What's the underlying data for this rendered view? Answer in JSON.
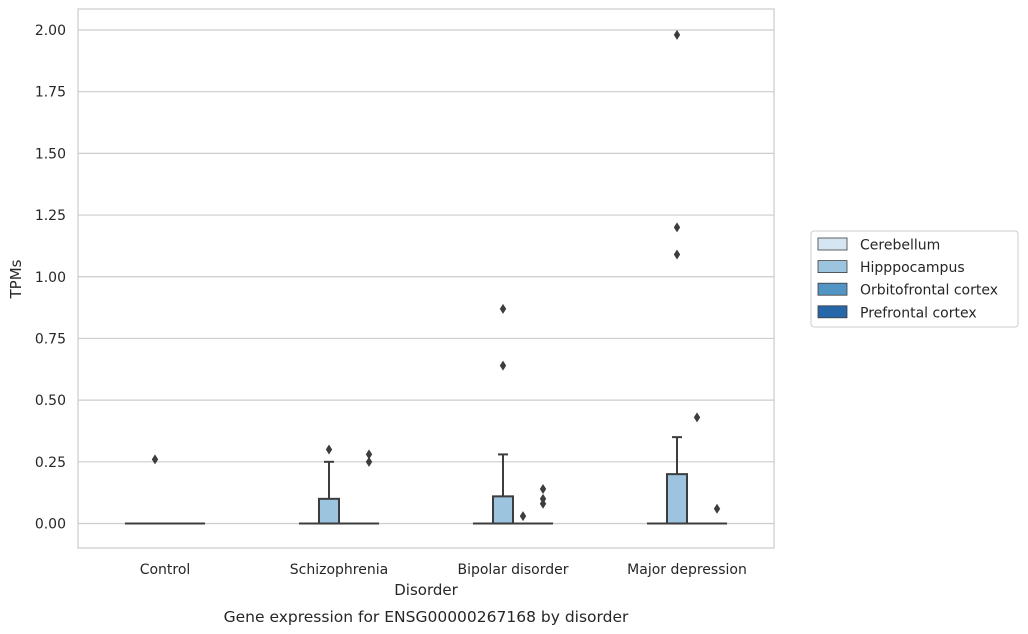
{
  "chart_data": {
    "type": "box",
    "title": "",
    "caption": "Gene expression for ENSG00000267168 by disorder",
    "xlabel": "Disorder",
    "ylabel": "TPMs",
    "ylim": [
      -0.1,
      2.08
    ],
    "yticks": [
      "0.00",
      "0.25",
      "0.50",
      "0.75",
      "1.00",
      "1.25",
      "1.50",
      "1.75",
      "2.00"
    ],
    "ytick_values": [
      0,
      0.25,
      0.5,
      0.75,
      1.0,
      1.25,
      1.5,
      1.75,
      2.0
    ],
    "categories": [
      "Control",
      "Schizophrenia",
      "Bipolar disorder",
      "Major depression"
    ],
    "grid": "horizontal",
    "legend_position": "right",
    "series": [
      {
        "name": "Cerebellum",
        "color": "#d5e5f2",
        "boxes": [
          {
            "q1": 0,
            "median": 0,
            "q3": 0,
            "whisker_low": 0,
            "whisker_high": 0,
            "outliers": []
          },
          {
            "q1": 0,
            "median": 0,
            "q3": 0,
            "whisker_low": 0,
            "whisker_high": 0,
            "outliers": []
          },
          {
            "q1": 0,
            "median": 0,
            "q3": 0,
            "whisker_low": 0,
            "whisker_high": 0,
            "outliers": []
          },
          {
            "q1": 0,
            "median": 0,
            "q3": 0,
            "whisker_low": 0,
            "whisker_high": 0,
            "outliers": []
          }
        ]
      },
      {
        "name": "Hipppocampus",
        "color": "#9cc4de",
        "boxes": [
          {
            "q1": 0,
            "median": 0,
            "q3": 0,
            "whisker_low": 0,
            "whisker_high": 0,
            "outliers": [
              0.26
            ]
          },
          {
            "q1": 0,
            "median": 0,
            "q3": 0.1,
            "whisker_low": 0,
            "whisker_high": 0.25,
            "outliers": [
              0.3
            ]
          },
          {
            "q1": 0,
            "median": 0,
            "q3": 0.11,
            "whisker_low": 0,
            "whisker_high": 0.28,
            "outliers": [
              0.64,
              0.87
            ]
          },
          {
            "q1": 0,
            "median": 0,
            "q3": 0.2,
            "whisker_low": 0,
            "whisker_high": 0.35,
            "outliers": [
              1.09,
              1.2,
              1.98
            ]
          }
        ]
      },
      {
        "name": "Orbitofrontal cortex",
        "color": "#5295c4",
        "boxes": [
          {
            "q1": 0,
            "median": 0,
            "q3": 0,
            "whisker_low": 0,
            "whisker_high": 0,
            "outliers": []
          },
          {
            "q1": 0,
            "median": 0,
            "q3": 0,
            "whisker_low": 0,
            "whisker_high": 0,
            "outliers": []
          },
          {
            "q1": 0,
            "median": 0,
            "q3": 0,
            "whisker_low": 0,
            "whisker_high": 0,
            "outliers": [
              0.03
            ]
          },
          {
            "q1": 0,
            "median": 0,
            "q3": 0,
            "whisker_low": 0,
            "whisker_high": 0,
            "outliers": [
              0.43
            ]
          }
        ]
      },
      {
        "name": "Prefrontal cortex",
        "color": "#2567a8",
        "boxes": [
          {
            "q1": 0,
            "median": 0,
            "q3": 0,
            "whisker_low": 0,
            "whisker_high": 0,
            "outliers": []
          },
          {
            "q1": 0,
            "median": 0,
            "q3": 0,
            "whisker_low": 0,
            "whisker_high": 0,
            "outliers": [
              0.25,
              0.28
            ]
          },
          {
            "q1": 0,
            "median": 0,
            "q3": 0,
            "whisker_low": 0,
            "whisker_high": 0,
            "outliers": [
              0.08,
              0.1,
              0.14
            ]
          },
          {
            "q1": 0,
            "median": 0,
            "q3": 0,
            "whisker_low": 0,
            "whisker_high": 0,
            "outliers": [
              0.06
            ]
          }
        ]
      }
    ]
  }
}
